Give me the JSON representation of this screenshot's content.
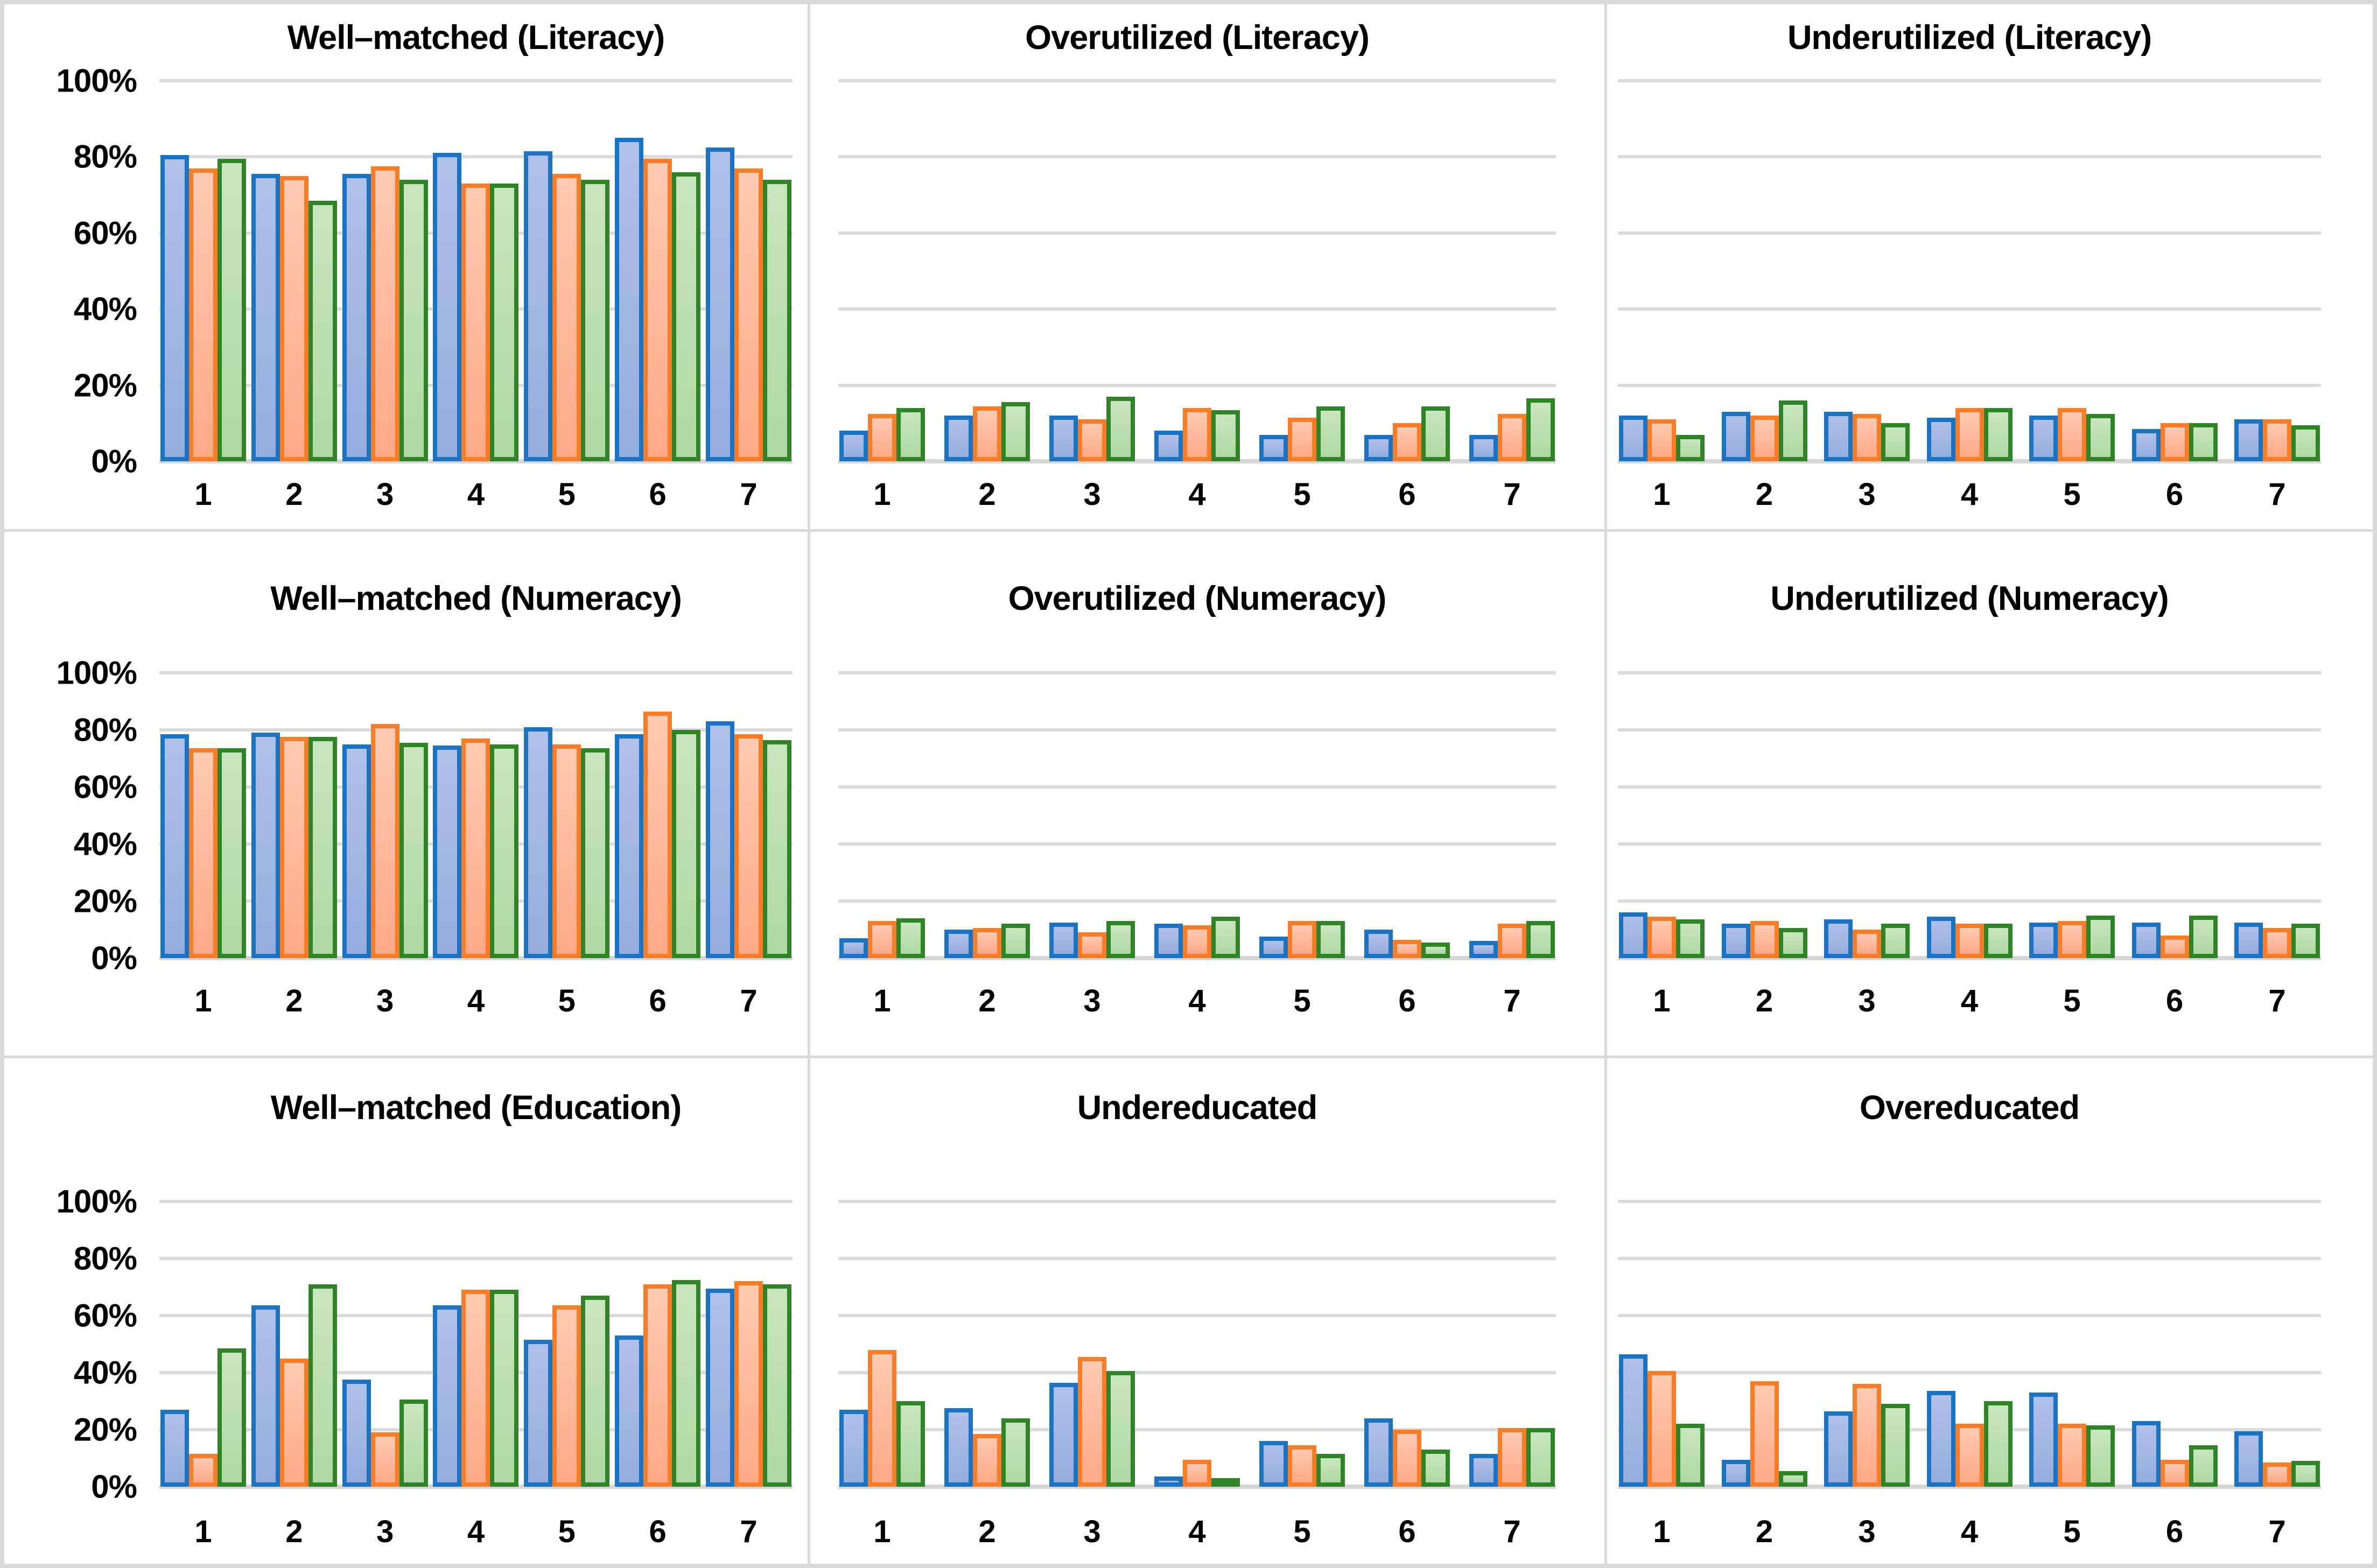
{
  "figure": {
    "y_tick_labels": [
      "0%",
      "20%",
      "40%",
      "60%",
      "80%",
      "100%"
    ],
    "x_tick_labels": [
      "1",
      "2",
      "3",
      "4",
      "5",
      "6",
      "7"
    ],
    "colors": {
      "blue_border": "#1B73C4",
      "blue_fill": "#A2B6E2",
      "orange_border": "#F97D26",
      "orange_fill": "#FDBBA1",
      "green_border": "#2F8428",
      "green_fill": "#BFE2B4",
      "gridline": "#DBDBDB",
      "panel_border": "#D9D9D9",
      "text": "#000000",
      "background": "#FFFFFF"
    }
  },
  "chart_data": [
    {
      "type": "bar",
      "title": "Well–matched (Literacy)",
      "categories": [
        "1",
        "2",
        "3",
        "4",
        "5",
        "6",
        "7"
      ],
      "ylim": [
        0,
        100
      ],
      "grid": true,
      "legend": "none",
      "show_y_labels": true,
      "series": [
        {
          "name": "blue",
          "values": [
            80.5,
            75.5,
            75.5,
            81,
            81.5,
            85,
            82.5
          ]
        },
        {
          "name": "orange",
          "values": [
            77,
            75,
            77.5,
            73,
            75.5,
            79.5,
            77
          ]
        },
        {
          "name": "green",
          "values": [
            79.5,
            68.5,
            74,
            73,
            74,
            76,
            74
          ]
        }
      ]
    },
    {
      "type": "bar",
      "title": "Overutilized (Literacy)",
      "categories": [
        "1",
        "2",
        "3",
        "4",
        "5",
        "6",
        "7"
      ],
      "ylim": [
        0,
        100
      ],
      "grid": true,
      "legend": "none",
      "show_y_labels": false,
      "series": [
        {
          "name": "blue",
          "values": [
            8,
            12,
            12,
            8,
            7,
            7,
            7
          ]
        },
        {
          "name": "orange",
          "values": [
            12.5,
            14.5,
            11,
            14,
            11.5,
            10,
            12.5
          ]
        },
        {
          "name": "green",
          "values": [
            14,
            15.5,
            17,
            13.5,
            14.5,
            14.5,
            16.5
          ]
        }
      ]
    },
    {
      "type": "bar",
      "title": "Underutilized (Literacy)",
      "categories": [
        "1",
        "2",
        "3",
        "4",
        "5",
        "6",
        "7"
      ],
      "ylim": [
        0,
        100
      ],
      "grid": true,
      "legend": "none",
      "show_y_labels": false,
      "series": [
        {
          "name": "blue",
          "values": [
            12,
            13,
            13,
            11.5,
            12,
            8.5,
            11
          ]
        },
        {
          "name": "orange",
          "values": [
            11,
            12,
            12.5,
            14,
            14,
            10,
            11
          ]
        },
        {
          "name": "green",
          "values": [
            7,
            16,
            10,
            14,
            12.5,
            10,
            9.5
          ]
        }
      ]
    },
    {
      "type": "bar",
      "title": "Well–matched (Numeracy)",
      "categories": [
        "1",
        "2",
        "3",
        "4",
        "5",
        "6",
        "7"
      ],
      "ylim": [
        0,
        100
      ],
      "grid": true,
      "legend": "none",
      "show_y_labels": true,
      "series": [
        {
          "name": "blue",
          "values": [
            78.5,
            79,
            75,
            74.5,
            81,
            78.5,
            83
          ]
        },
        {
          "name": "orange",
          "values": [
            73.5,
            77.5,
            82,
            77,
            75,
            86.5,
            78.5
          ]
        },
        {
          "name": "green",
          "values": [
            73.5,
            77.5,
            75.5,
            75,
            73.5,
            80,
            76.5
          ]
        }
      ]
    },
    {
      "type": "bar",
      "title": "Overutilized (Numeracy)",
      "categories": [
        "1",
        "2",
        "3",
        "4",
        "5",
        "6",
        "7"
      ],
      "ylim": [
        0,
        100
      ],
      "grid": true,
      "legend": "none",
      "show_y_labels": false,
      "series": [
        {
          "name": "blue",
          "values": [
            7,
            10,
            12.5,
            12,
            7.5,
            10,
            6
          ]
        },
        {
          "name": "orange",
          "values": [
            13,
            10.5,
            9,
            11.5,
            13,
            6.5,
            12
          ]
        },
        {
          "name": "green",
          "values": [
            14,
            12,
            13,
            14.5,
            13,
            5.5,
            13
          ]
        }
      ]
    },
    {
      "type": "bar",
      "title": "Underutilized (Numeracy)",
      "categories": [
        "1",
        "2",
        "3",
        "4",
        "5",
        "6",
        "7"
      ],
      "ylim": [
        0,
        100
      ],
      "grid": true,
      "legend": "none",
      "show_y_labels": false,
      "series": [
        {
          "name": "blue",
          "values": [
            16,
            12,
            13.5,
            14.5,
            12.5,
            12.5,
            12.5
          ]
        },
        {
          "name": "orange",
          "values": [
            14.5,
            13,
            10,
            12,
            13,
            8,
            10.5
          ]
        },
        {
          "name": "green",
          "values": [
            13.5,
            10.5,
            12,
            12,
            15,
            15,
            12
          ]
        }
      ]
    },
    {
      "type": "bar",
      "title": "Well–matched (Education)",
      "categories": [
        "1",
        "2",
        "3",
        "4",
        "5",
        "6",
        "7"
      ],
      "ylim": [
        0,
        100
      ],
      "grid": true,
      "legend": "none",
      "show_y_labels": true,
      "series": [
        {
          "name": "blue",
          "values": [
            27,
            63.5,
            37.5,
            63.5,
            51.5,
            53,
            69.5
          ]
        },
        {
          "name": "orange",
          "values": [
            11.5,
            45,
            19,
            69,
            63.5,
            71,
            72
          ]
        },
        {
          "name": "green",
          "values": [
            48.5,
            71,
            30.5,
            69,
            67,
            72.5,
            71
          ]
        }
      ]
    },
    {
      "type": "bar",
      "title": "Undereducated",
      "categories": [
        "1",
        "2",
        "3",
        "4",
        "5",
        "6",
        "7"
      ],
      "ylim": [
        0,
        100
      ],
      "grid": true,
      "legend": "none",
      "show_y_labels": false,
      "series": [
        {
          "name": "blue",
          "values": [
            27,
            27.5,
            36.5,
            3.5,
            16,
            24,
            11.5
          ]
        },
        {
          "name": "orange",
          "values": [
            48,
            18.5,
            45.5,
            9.5,
            14.5,
            20,
            20.5
          ]
        },
        {
          "name": "green",
          "values": [
            30,
            24,
            40.5,
            1.5,
            11.5,
            13,
            20.5
          ]
        }
      ]
    },
    {
      "type": "bar",
      "title": "Overeducated",
      "categories": [
        "1",
        "2",
        "3",
        "4",
        "5",
        "6",
        "7"
      ],
      "ylim": [
        0,
        100
      ],
      "grid": true,
      "legend": "none",
      "show_y_labels": false,
      "series": [
        {
          "name": "blue",
          "values": [
            46.5,
            9.5,
            26.5,
            33.5,
            33,
            23,
            19.5
          ]
        },
        {
          "name": "orange",
          "values": [
            40.5,
            37,
            36,
            22,
            22,
            9.5,
            8.5
          ]
        },
        {
          "name": "green",
          "values": [
            22,
            5.5,
            29,
            30,
            21.5,
            14.5,
            9
          ]
        }
      ]
    }
  ]
}
